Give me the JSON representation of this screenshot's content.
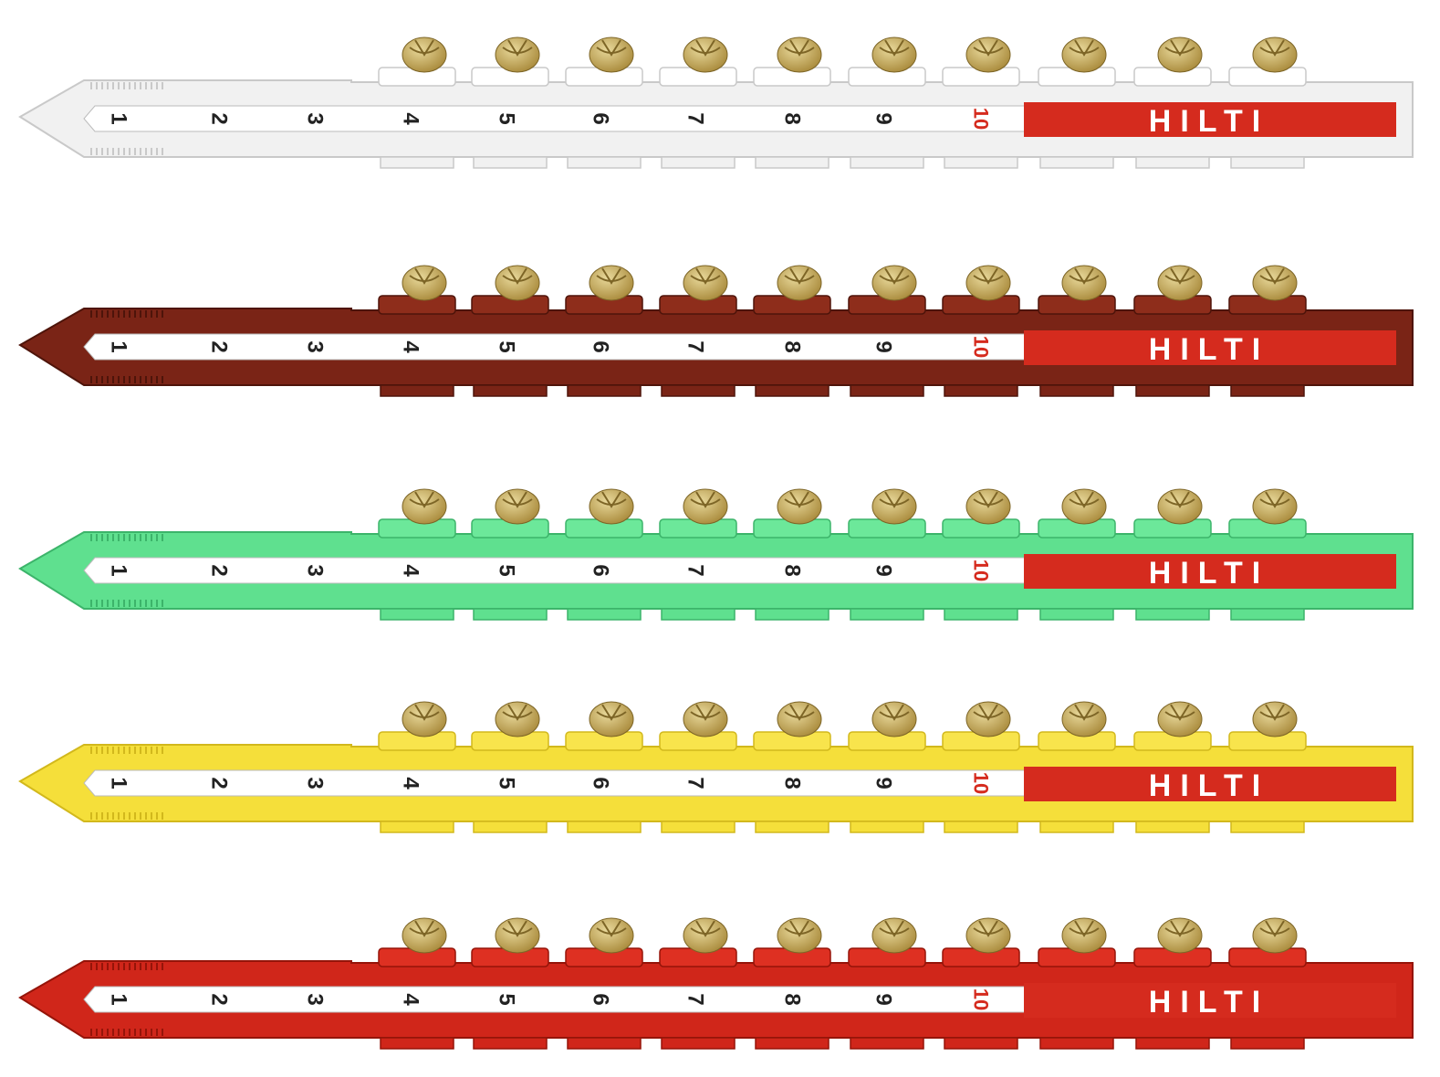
{
  "brand": "HILTI",
  "numbers": [
    "1",
    "2",
    "3",
    "4",
    "5",
    "6",
    "7",
    "8",
    "9",
    "10"
  ],
  "cartridges_per_strip": 10,
  "colors": {
    "label_red": "#d52b1e",
    "label_white": "#ffffff",
    "number_dark": "#222222",
    "brass_light": "#e8d89a",
    "brass_dark": "#a8893a"
  },
  "strips": [
    {
      "color_name": "white",
      "body": "#f1f1f1",
      "shade": "#c9c9c9",
      "cap": "#ffffff"
    },
    {
      "color_name": "brown",
      "body": "#7a2416",
      "shade": "#4e140a",
      "cap": "#8e2d1b"
    },
    {
      "color_name": "green",
      "body": "#5fe08f",
      "shade": "#3cb46a",
      "cap": "#6ce89a"
    },
    {
      "color_name": "yellow",
      "body": "#f5df3a",
      "shade": "#d2b81c",
      "cap": "#f8e44c"
    },
    {
      "color_name": "red",
      "body": "#d0261a",
      "shade": "#951409",
      "cap": "#de3022"
    }
  ]
}
